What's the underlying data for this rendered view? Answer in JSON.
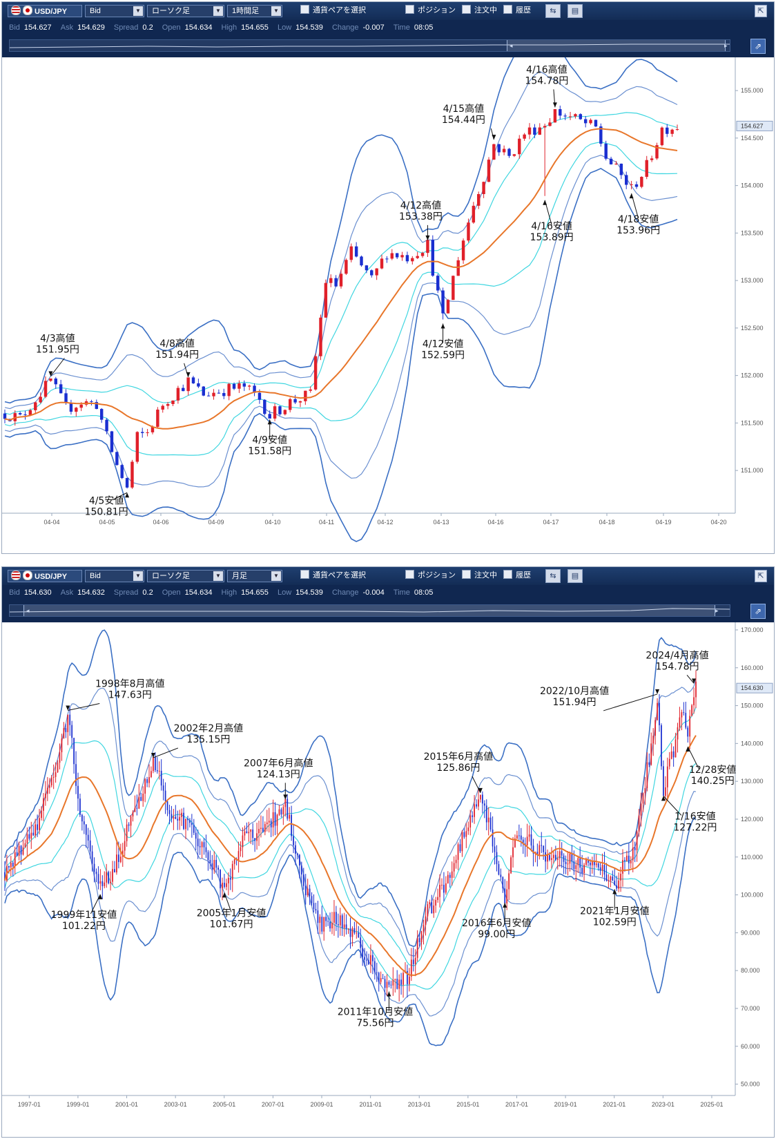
{
  "panels": [
    {
      "symbol": "USD/JPY",
      "price_type": "Bid",
      "chart_kind": "ローソク足",
      "timeframe": "1時間足",
      "pair_select_label": "通貨ペアを選択",
      "position_label": "ポジション",
      "orders_label": "注文中",
      "history_label": "履歴",
      "quote": {
        "bid_label": "Bid",
        "bid": "154.627",
        "ask_label": "Ask",
        "ask": "154.629",
        "spread_label": "Spread",
        "spread": "0.2",
        "open_label": "Open",
        "open": "154.634",
        "high_label": "High",
        "high": "154.655",
        "low_label": "Low",
        "low": "154.539",
        "change_label": "Change",
        "change": "-0.007",
        "time_label": "Time",
        "time": "08:05"
      },
      "current_price": "154.627"
    },
    {
      "symbol": "USD/JPY",
      "price_type": "Bid",
      "chart_kind": "ローソク足",
      "timeframe": "月足",
      "pair_select_label": "通貨ペアを選択",
      "position_label": "ポジション",
      "orders_label": "注文中",
      "history_label": "履歴",
      "quote": {
        "bid_label": "Bid",
        "bid": "154.630",
        "ask_label": "Ask",
        "ask": "154.632",
        "spread_label": "Spread",
        "spread": "0.2",
        "open_label": "Open",
        "open": "154.634",
        "high_label": "High",
        "high": "154.655",
        "low_label": "Low",
        "low": "154.539",
        "change_label": "Change",
        "change": "-0.004",
        "time_label": "Time",
        "time": "08:05"
      },
      "current_price": "154.630"
    }
  ],
  "chart_data": [
    {
      "type": "candlestick",
      "title": "",
      "xlabel": "",
      "ylabel": "",
      "y_ticks": [
        "155.000",
        "154.500",
        "154.000",
        "153.500",
        "153.000",
        "152.500",
        "152.000",
        "151.500",
        "151.000"
      ],
      "ylim": [
        150.55,
        155.35
      ],
      "x_ticks": [
        "04-04",
        "04-05",
        "04-06",
        "04-09",
        "04-10",
        "04-11",
        "04-12",
        "04-13",
        "04-16",
        "04-17",
        "04-18",
        "04-19",
        "04-20"
      ],
      "series": [
        {
          "name": "",
          "color": "#1a2fd0",
          "role": "candles"
        },
        {
          "name": "",
          "color": "#e8762a",
          "role": "moving-average"
        },
        {
          "name": "",
          "color": "#3fd6e0",
          "role": "band-1sigma"
        },
        {
          "name": "",
          "color": "#6a8fd0",
          "role": "band-2sigma"
        },
        {
          "name": "",
          "color": "#3a6fc4",
          "role": "band-3sigma"
        }
      ],
      "price_path": [
        [
          0,
          151.6
        ],
        [
          3,
          151.55
        ],
        [
          6,
          151.75
        ],
        [
          9,
          151.95
        ],
        [
          12,
          151.65
        ],
        [
          15,
          151.72
        ],
        [
          18,
          151.7
        ],
        [
          20,
          151.35
        ],
        [
          22,
          151.05
        ],
        [
          24,
          150.81
        ],
        [
          26,
          151.35
        ],
        [
          28,
          151.4
        ],
        [
          31,
          151.7
        ],
        [
          34,
          151.85
        ],
        [
          36,
          151.94
        ],
        [
          39,
          151.8
        ],
        [
          43,
          151.85
        ],
        [
          47,
          151.88
        ],
        [
          50,
          151.75
        ],
        [
          52,
          151.58
        ],
        [
          56,
          151.72
        ],
        [
          60,
          151.8
        ],
        [
          63,
          153.0
        ],
        [
          65,
          152.95
        ],
        [
          68,
          153.3
        ],
        [
          72,
          153.0
        ],
        [
          75,
          153.3
        ],
        [
          79,
          153.25
        ],
        [
          83,
          153.38
        ],
        [
          86,
          152.59
        ],
        [
          89,
          153.25
        ],
        [
          92,
          153.8
        ],
        [
          94,
          154.1
        ],
        [
          96,
          154.44
        ],
        [
          99,
          154.3
        ],
        [
          102,
          154.55
        ],
        [
          106,
          154.65
        ],
        [
          108,
          154.78
        ],
        [
          112,
          154.7
        ],
        [
          116,
          154.6
        ],
        [
          118,
          154.3
        ],
        [
          121,
          154.1
        ],
        [
          123,
          153.96
        ],
        [
          126,
          154.2
        ],
        [
          129,
          154.6
        ],
        [
          132,
          154.627
        ]
      ],
      "annotations": [
        {
          "text1": "4/3高値",
          "text2": "151.95円",
          "i": 9,
          "price": 151.95,
          "kind": "high"
        },
        {
          "text1": "4/5安値",
          "text2": "150.81円",
          "i": 24,
          "price": 150.81,
          "kind": "low"
        },
        {
          "text1": "4/8高値",
          "text2": "151.94円",
          "i": 36,
          "price": 151.94,
          "kind": "high"
        },
        {
          "text1": "4/9安値",
          "text2": "151.58円",
          "i": 52,
          "price": 151.58,
          "kind": "low"
        },
        {
          "text1": "4/12高値",
          "text2": "153.38円",
          "i": 83,
          "price": 153.38,
          "kind": "high"
        },
        {
          "text1": "4/12安値",
          "text2": "152.59円",
          "i": 86,
          "price": 152.59,
          "kind": "low"
        },
        {
          "text1": "4/15高値",
          "text2": "154.44円",
          "i": 96,
          "price": 154.44,
          "kind": "high"
        },
        {
          "text1": "4/16高値",
          "text2": "154.78円",
          "i": 108,
          "price": 154.78,
          "kind": "high"
        },
        {
          "text1": "4/16安値",
          "text2": "153.89円",
          "i": 106,
          "price": 153.89,
          "kind": "low"
        },
        {
          "text1": "4/18安値",
          "text2": "153.96円",
          "i": 123,
          "price": 153.96,
          "kind": "low"
        }
      ]
    },
    {
      "type": "candlestick",
      "title": "",
      "xlabel": "",
      "ylabel": "",
      "y_ticks": [
        "170.000",
        "160.000",
        "150.000",
        "140.000",
        "130.000",
        "120.000",
        "110.000",
        "100.000",
        "90.000",
        "80.000",
        "70.000",
        "60.000",
        "50.000"
      ],
      "ylim": [
        47,
        172
      ],
      "x_ticks": [
        "1997-01",
        "1999-01",
        "2001-01",
        "2003-01",
        "2005-01",
        "2007-01",
        "2009-01",
        "2011-01",
        "2013-01",
        "2015-01",
        "2017-01",
        "2019-01",
        "2021-01",
        "2023-01",
        "2025-01"
      ],
      "series": [
        {
          "name": "",
          "color": "#1a2fd0",
          "role": "candles"
        },
        {
          "name": "",
          "color": "#e8762a",
          "role": "moving-average"
        },
        {
          "name": "",
          "color": "#3fd6e0",
          "role": "band-1sigma"
        },
        {
          "name": "",
          "color": "#6a8fd0",
          "role": "band-2sigma"
        },
        {
          "name": "",
          "color": "#3a6fc4",
          "role": "band-3sigma"
        }
      ],
      "price_path": [
        [
          1996.0,
          106
        ],
        [
          1997.3,
          118
        ],
        [
          1998.2,
          135
        ],
        [
          1998.6,
          147.63
        ],
        [
          1999.1,
          120
        ],
        [
          1999.9,
          101.22
        ],
        [
          2000.5,
          107
        ],
        [
          2001.3,
          122
        ],
        [
          2002.1,
          135.15
        ],
        [
          2002.8,
          122
        ],
        [
          2003.6,
          118
        ],
        [
          2004.4,
          110
        ],
        [
          2005.0,
          101.67
        ],
        [
          2005.9,
          117
        ],
        [
          2006.6,
          116
        ],
        [
          2007.5,
          124.13
        ],
        [
          2008.2,
          104
        ],
        [
          2008.9,
          92
        ],
        [
          2009.6,
          94
        ],
        [
          2010.4,
          88
        ],
        [
          2011.0,
          82
        ],
        [
          2011.8,
          75.56
        ],
        [
          2012.5,
          78
        ],
        [
          2013.3,
          95
        ],
        [
          2014.0,
          102
        ],
        [
          2014.8,
          115
        ],
        [
          2015.5,
          125.86
        ],
        [
          2016.0,
          115
        ],
        [
          2016.5,
          99.0
        ],
        [
          2017.0,
          117
        ],
        [
          2017.8,
          112
        ],
        [
          2018.6,
          110
        ],
        [
          2019.5,
          108
        ],
        [
          2020.4,
          107
        ],
        [
          2021.0,
          102.59
        ],
        [
          2021.9,
          114
        ],
        [
          2022.8,
          151.94
        ],
        [
          2023.0,
          127.22
        ],
        [
          2023.5,
          140
        ],
        [
          2023.8,
          151.5
        ],
        [
          2023.99,
          140.25
        ],
        [
          2024.3,
          154.78
        ],
        [
          2024.35,
          154.63
        ]
      ],
      "annotations": [
        {
          "text1": "1998年8月高値",
          "text2": "147.63円",
          "x": 1998.6,
          "price": 147.63,
          "kind": "high"
        },
        {
          "text1": "1999年11安値",
          "text2": "101.22円",
          "x": 1999.9,
          "price": 101.22,
          "kind": "low"
        },
        {
          "text1": "2002年2月高値",
          "text2": "135.15円",
          "x": 2002.1,
          "price": 135.15,
          "kind": "high"
        },
        {
          "text1": "2005年1月安値",
          "text2": "101.67円",
          "x": 2005.0,
          "price": 101.67,
          "kind": "low"
        },
        {
          "text1": "2007年6月高値",
          "text2": "124.13円",
          "x": 2007.5,
          "price": 124.13,
          "kind": "high"
        },
        {
          "text1": "2011年10月安値",
          "text2": "75.56円",
          "x": 2011.8,
          "price": 75.56,
          "kind": "low"
        },
        {
          "text1": "2015年6月高値",
          "text2": "125.86円",
          "x": 2015.5,
          "price": 125.86,
          "kind": "high"
        },
        {
          "text1": "2016年6月安値",
          "text2": "99.00円",
          "x": 2016.5,
          "price": 99.0,
          "kind": "low"
        },
        {
          "text1": "2021年1月安値",
          "text2": "102.59円",
          "x": 2021.0,
          "price": 102.59,
          "kind": "low"
        },
        {
          "text1": "2022/10月高値",
          "text2": "151.94円",
          "x": 2022.8,
          "price": 151.94,
          "kind": "high"
        },
        {
          "text1": "1/16安値",
          "text2": "127.22円",
          "x": 2023.0,
          "price": 127.22,
          "kind": "low"
        },
        {
          "text1": "12/28安値",
          "text2": "140.25円",
          "x": 2023.99,
          "price": 140.25,
          "kind": "low"
        },
        {
          "text1": "2024/4月高値",
          "text2": "154.78円",
          "x": 2024.3,
          "price": 154.78,
          "kind": "high"
        }
      ]
    }
  ],
  "icons": {
    "dropdown": "chevron-down-icon",
    "corner": "collapse-corner-icon",
    "nav": "expand-icon",
    "sq1": "chart-type-icon",
    "sq2": "layout-icon"
  }
}
